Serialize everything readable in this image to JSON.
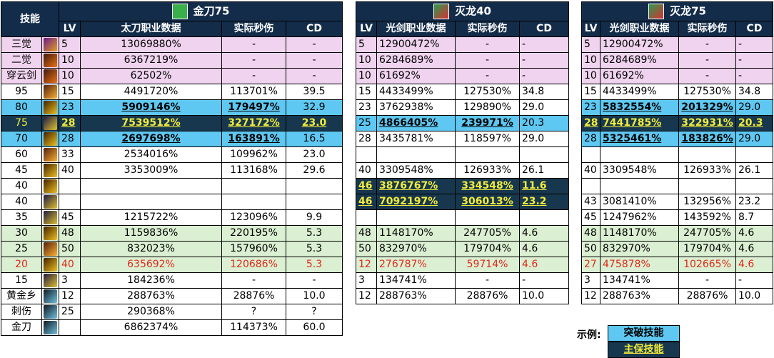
{
  "left_header": {
    "skill_col": "技能",
    "title": "金刀75",
    "lv": "LV",
    "data_col": "太刀职业数据",
    "dps_col": "实际秒伤",
    "cd_col": "CD"
  },
  "mid_header": {
    "title": "灭龙40",
    "lv": "LV",
    "data_col": "光剑职业数据",
    "dps_col": "实际秒伤",
    "cd_col": "CD"
  },
  "right_header": {
    "title": "灭龙75",
    "lv": "LV",
    "data_col": "光剑职业数据",
    "dps_col": "实际秒伤",
    "cd_col": "CD"
  },
  "rows": [
    {
      "name": "三觉",
      "icon": "skill-a",
      "style": "pink",
      "L": [
        "5",
        "13069880%",
        "-",
        "-"
      ],
      "M": [
        "5",
        "12900472%",
        "-",
        "-"
      ],
      "R": [
        "5",
        "12900472%",
        "-",
        "-"
      ]
    },
    {
      "name": "二觉",
      "icon": "skill-b",
      "style": "pink",
      "L": [
        "10",
        "6367219%",
        "-",
        "-"
      ],
      "M": [
        "10",
        "6284689%",
        "-",
        "-"
      ],
      "R": [
        "10",
        "6284689%",
        "-",
        "-"
      ]
    },
    {
      "name": "穿云剑",
      "icon": "skill-b",
      "style": "pink",
      "L": [
        "10",
        "62502%",
        "-",
        "-"
      ],
      "M": [
        "10",
        "61692%",
        "-",
        "-"
      ],
      "R": [
        "10",
        "61692%",
        "-",
        "-"
      ]
    },
    {
      "name": "95",
      "icon": "skill-c",
      "style": "",
      "L": [
        "15",
        "4491720%",
        "113701%",
        "39.5"
      ],
      "M": [
        "15",
        "4433499%",
        "127530%",
        "34.8"
      ],
      "R": [
        "15",
        "4433499%",
        "127530%",
        "34.8"
      ]
    },
    {
      "name": "80",
      "icon": "skill-d",
      "style": "",
      "L": [
        "23",
        "5909146%",
        "179497%",
        "32.9"
      ],
      "M": [
        "23",
        "3762938%",
        "129890%",
        "29.0"
      ],
      "R": [
        "23",
        "5832554%",
        "201329%",
        "29.0"
      ]
    },
    {
      "name": "75",
      "icon": "skill-e",
      "style": "",
      "L": [
        "28",
        "7539512%",
        "327172%",
        "23.0"
      ],
      "M": [
        "25",
        "4866405%",
        "239971%",
        "20.3"
      ],
      "R": [
        "28",
        "7441785%",
        "322931%",
        "20.3"
      ]
    },
    {
      "name": "70",
      "icon": "skill-d",
      "style": "",
      "L": [
        "28",
        "2697698%",
        "163891%",
        "16.5"
      ],
      "M": [
        "28",
        "3435781%",
        "118597%",
        "29.0"
      ],
      "R": [
        "28",
        "5325461%",
        "183826%",
        "29.0"
      ]
    },
    {
      "name": "60",
      "icon": "skill-c",
      "style": "",
      "L": [
        "33",
        "2534016%",
        "109962%",
        "23.0"
      ],
      "M": [
        "",
        "",
        "",
        ""
      ],
      "R": [
        "",
        "",
        "",
        ""
      ]
    },
    {
      "name": "45",
      "icon": "skill-d",
      "style": "",
      "L": [
        "40",
        "3353009%",
        "113168%",
        "29.6"
      ],
      "M": [
        "40",
        "3309548%",
        "126933%",
        "26.1"
      ],
      "R": [
        "40",
        "3309548%",
        "126933%",
        "26.1"
      ]
    },
    {
      "name": "40",
      "icon": "skill-d",
      "style": "",
      "L": [
        "",
        "",
        "",
        ""
      ],
      "M": [
        "46",
        "3876767%",
        "334548%",
        "11.6"
      ],
      "R": [
        "",
        "",
        "",
        ""
      ]
    },
    {
      "name": "40",
      "icon": "skill-e",
      "style": "",
      "L": [
        "",
        "",
        "",
        ""
      ],
      "M": [
        "46",
        "7092197%",
        "306013%",
        "23.2"
      ],
      "R": [
        "43",
        "3081410%",
        "132956%",
        "23.2"
      ]
    },
    {
      "name": "35",
      "icon": "skill-e",
      "style": "",
      "L": [
        "45",
        "1215722%",
        "123096%",
        "9.9"
      ],
      "M": [
        "",
        "",
        "",
        ""
      ],
      "R": [
        "45",
        "1247962%",
        "143592%",
        "8.7"
      ]
    },
    {
      "name": "30",
      "icon": "skill-d",
      "style": "green",
      "L": [
        "48",
        "1159836%",
        "220195%",
        "5.3"
      ],
      "M": [
        "48",
        "1148170%",
        "247705%",
        "4.6"
      ],
      "R": [
        "48",
        "1148170%",
        "247705%",
        "4.6"
      ]
    },
    {
      "name": "25",
      "icon": "skill-c",
      "style": "green",
      "L": [
        "50",
        "832023%",
        "157960%",
        "5.3"
      ],
      "M": [
        "50",
        "832970%",
        "179704%",
        "4.6"
      ],
      "R": [
        "50",
        "832970%",
        "179704%",
        "4.6"
      ]
    },
    {
      "name": "20",
      "icon": "skill-d",
      "style": "green red",
      "L": [
        "40",
        "635692%",
        "120686%",
        "5.3"
      ],
      "M": [
        "12",
        "276787%",
        "59714%",
        "4.6"
      ],
      "R": [
        "27",
        "475878%",
        "102665%",
        "4.6"
      ]
    },
    {
      "name": "15",
      "icon": "skill-e",
      "style": "",
      "L": [
        "3",
        "184236%",
        "-",
        "-"
      ],
      "M": [
        "3",
        "134741%",
        "-",
        "-"
      ],
      "R": [
        "3",
        "134741%",
        "-",
        "-"
      ]
    },
    {
      "name": "黄金乡",
      "icon": "skill-f",
      "style": "",
      "L": [
        "12",
        "288763%",
        "28876%",
        "10.0"
      ],
      "M": [
        "12",
        "288763%",
        "28876%",
        "10.0"
      ],
      "R": [
        "12",
        "288763%",
        "28876%",
        "10.0"
      ]
    },
    {
      "name": "刺伤",
      "icon": "skill-f",
      "style": "",
      "L": [
        "25",
        "290368%",
        "?",
        "?"
      ],
      "M": null,
      "R": null
    },
    {
      "name": "金刀",
      "icon": "skill-f",
      "style": "",
      "L": [
        "",
        "6862374%",
        "114373%",
        "60.0"
      ],
      "M": null,
      "R": null
    }
  ],
  "highlights": {
    "L": {
      "4": "blue",
      "5": "dark",
      "6": "blue"
    },
    "M": {
      "5": "blue",
      "9": "dark",
      "10": "dark"
    },
    "R": {
      "4": "blue",
      "5": "dark",
      "6": "blue"
    }
  },
  "legend": {
    "label": "示例:",
    "breakthrough": "突破技能",
    "guarantee": "主保技能"
  },
  "colors": {
    "header": "#132c4a",
    "pink": "#f0d4ef",
    "blue": "#5ec8f2",
    "dark": "#17374e",
    "dark_text": "#f3ec3a",
    "green": "#dbf0d2",
    "red": "#e0281a"
  }
}
